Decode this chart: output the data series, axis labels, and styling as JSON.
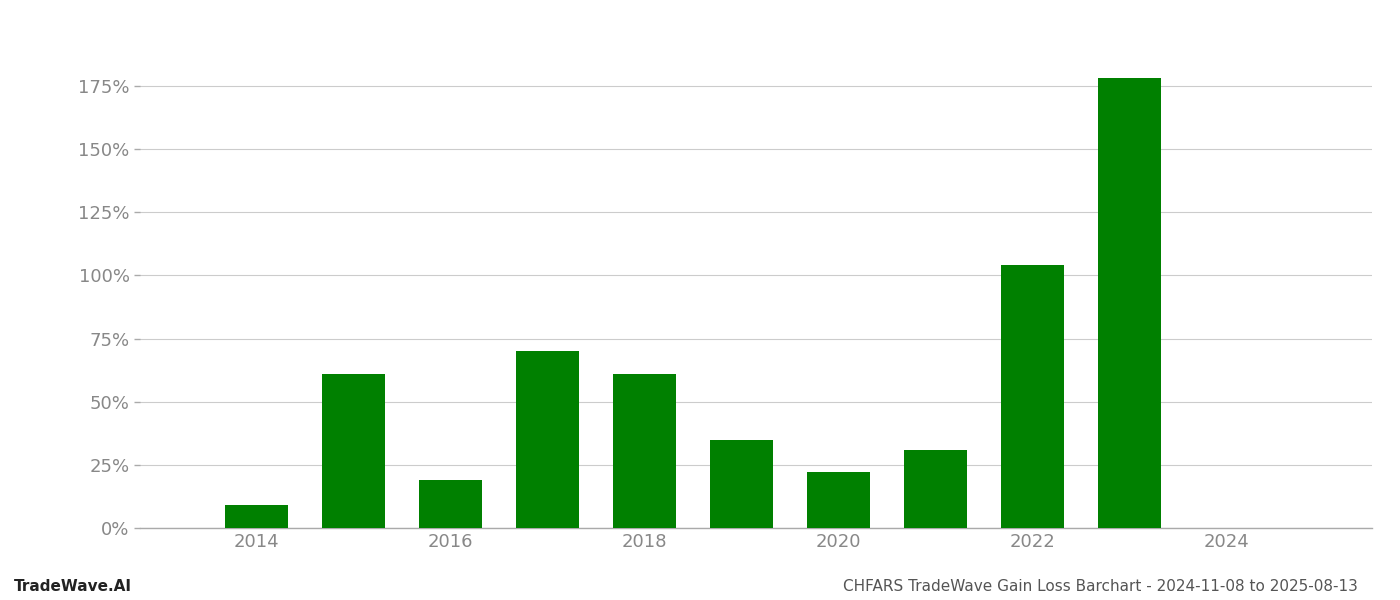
{
  "years": [
    2014,
    2015,
    2016,
    2017,
    2018,
    2019,
    2020,
    2021,
    2022,
    2023,
    2024
  ],
  "values": [
    0.09,
    0.61,
    0.19,
    0.7,
    0.61,
    0.35,
    0.22,
    0.31,
    1.04,
    1.78,
    0.0
  ],
  "bar_color": "#008000",
  "background_color": "#ffffff",
  "grid_color": "#cccccc",
  "ylabel_color": "#888888",
  "xlabel_color": "#888888",
  "title_text": "CHFARS TradeWave Gain Loss Barchart - 2024-11-08 to 2025-08-13",
  "watermark_text": "TradeWave.AI",
  "yticks": [
    0.0,
    0.25,
    0.5,
    0.75,
    1.0,
    1.25,
    1.5,
    1.75
  ],
  "ytick_labels": [
    "0%",
    "25%",
    "50%",
    "75%",
    "100%",
    "125%",
    "150%",
    "175%"
  ],
  "ylim": [
    0,
    1.9
  ],
  "xlim": [
    2012.8,
    2025.5
  ],
  "bar_width": 0.65,
  "title_fontsize": 11,
  "watermark_fontsize": 11,
  "tick_fontsize": 13,
  "footer_fontsize": 11
}
